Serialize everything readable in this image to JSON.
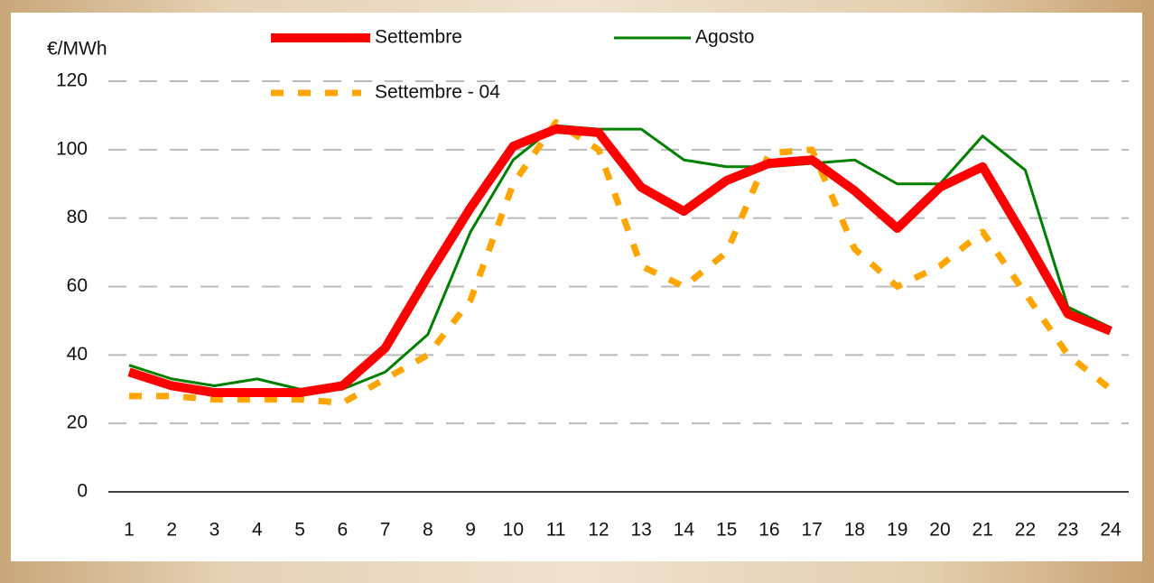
{
  "chart_data": {
    "type": "line",
    "y_label": "€/MWh",
    "categories": [
      1,
      2,
      3,
      4,
      5,
      6,
      7,
      8,
      9,
      10,
      11,
      12,
      13,
      14,
      15,
      16,
      17,
      18,
      19,
      20,
      21,
      22,
      23,
      24
    ],
    "series": [
      {
        "name": "Settembre",
        "color": "#ff0000",
        "values": [
          35,
          31,
          29,
          29,
          29,
          31,
          42,
          63,
          83,
          101,
          106,
          105,
          89,
          82,
          91,
          96,
          97,
          88,
          77,
          89,
          95,
          74,
          52,
          47
        ]
      },
      {
        "name": "Agosto",
        "color": "#008000",
        "values": [
          37,
          33,
          31,
          33,
          30,
          30,
          35,
          46,
          76,
          97,
          107,
          106,
          106,
          97,
          95,
          95,
          96,
          97,
          90,
          90,
          104,
          94,
          54,
          48
        ]
      },
      {
        "name": "Settembre - 04",
        "color": "#ffa500",
        "values": [
          28,
          28,
          27,
          27,
          27,
          26,
          33,
          40,
          56,
          90,
          108,
          100,
          66,
          60,
          70,
          99,
          100,
          71,
          60,
          66,
          76,
          58,
          40,
          30
        ]
      }
    ],
    "ylim": [
      0,
      120
    ],
    "yticks": [
      0,
      20,
      40,
      60,
      80,
      100,
      120
    ],
    "grid": true
  }
}
